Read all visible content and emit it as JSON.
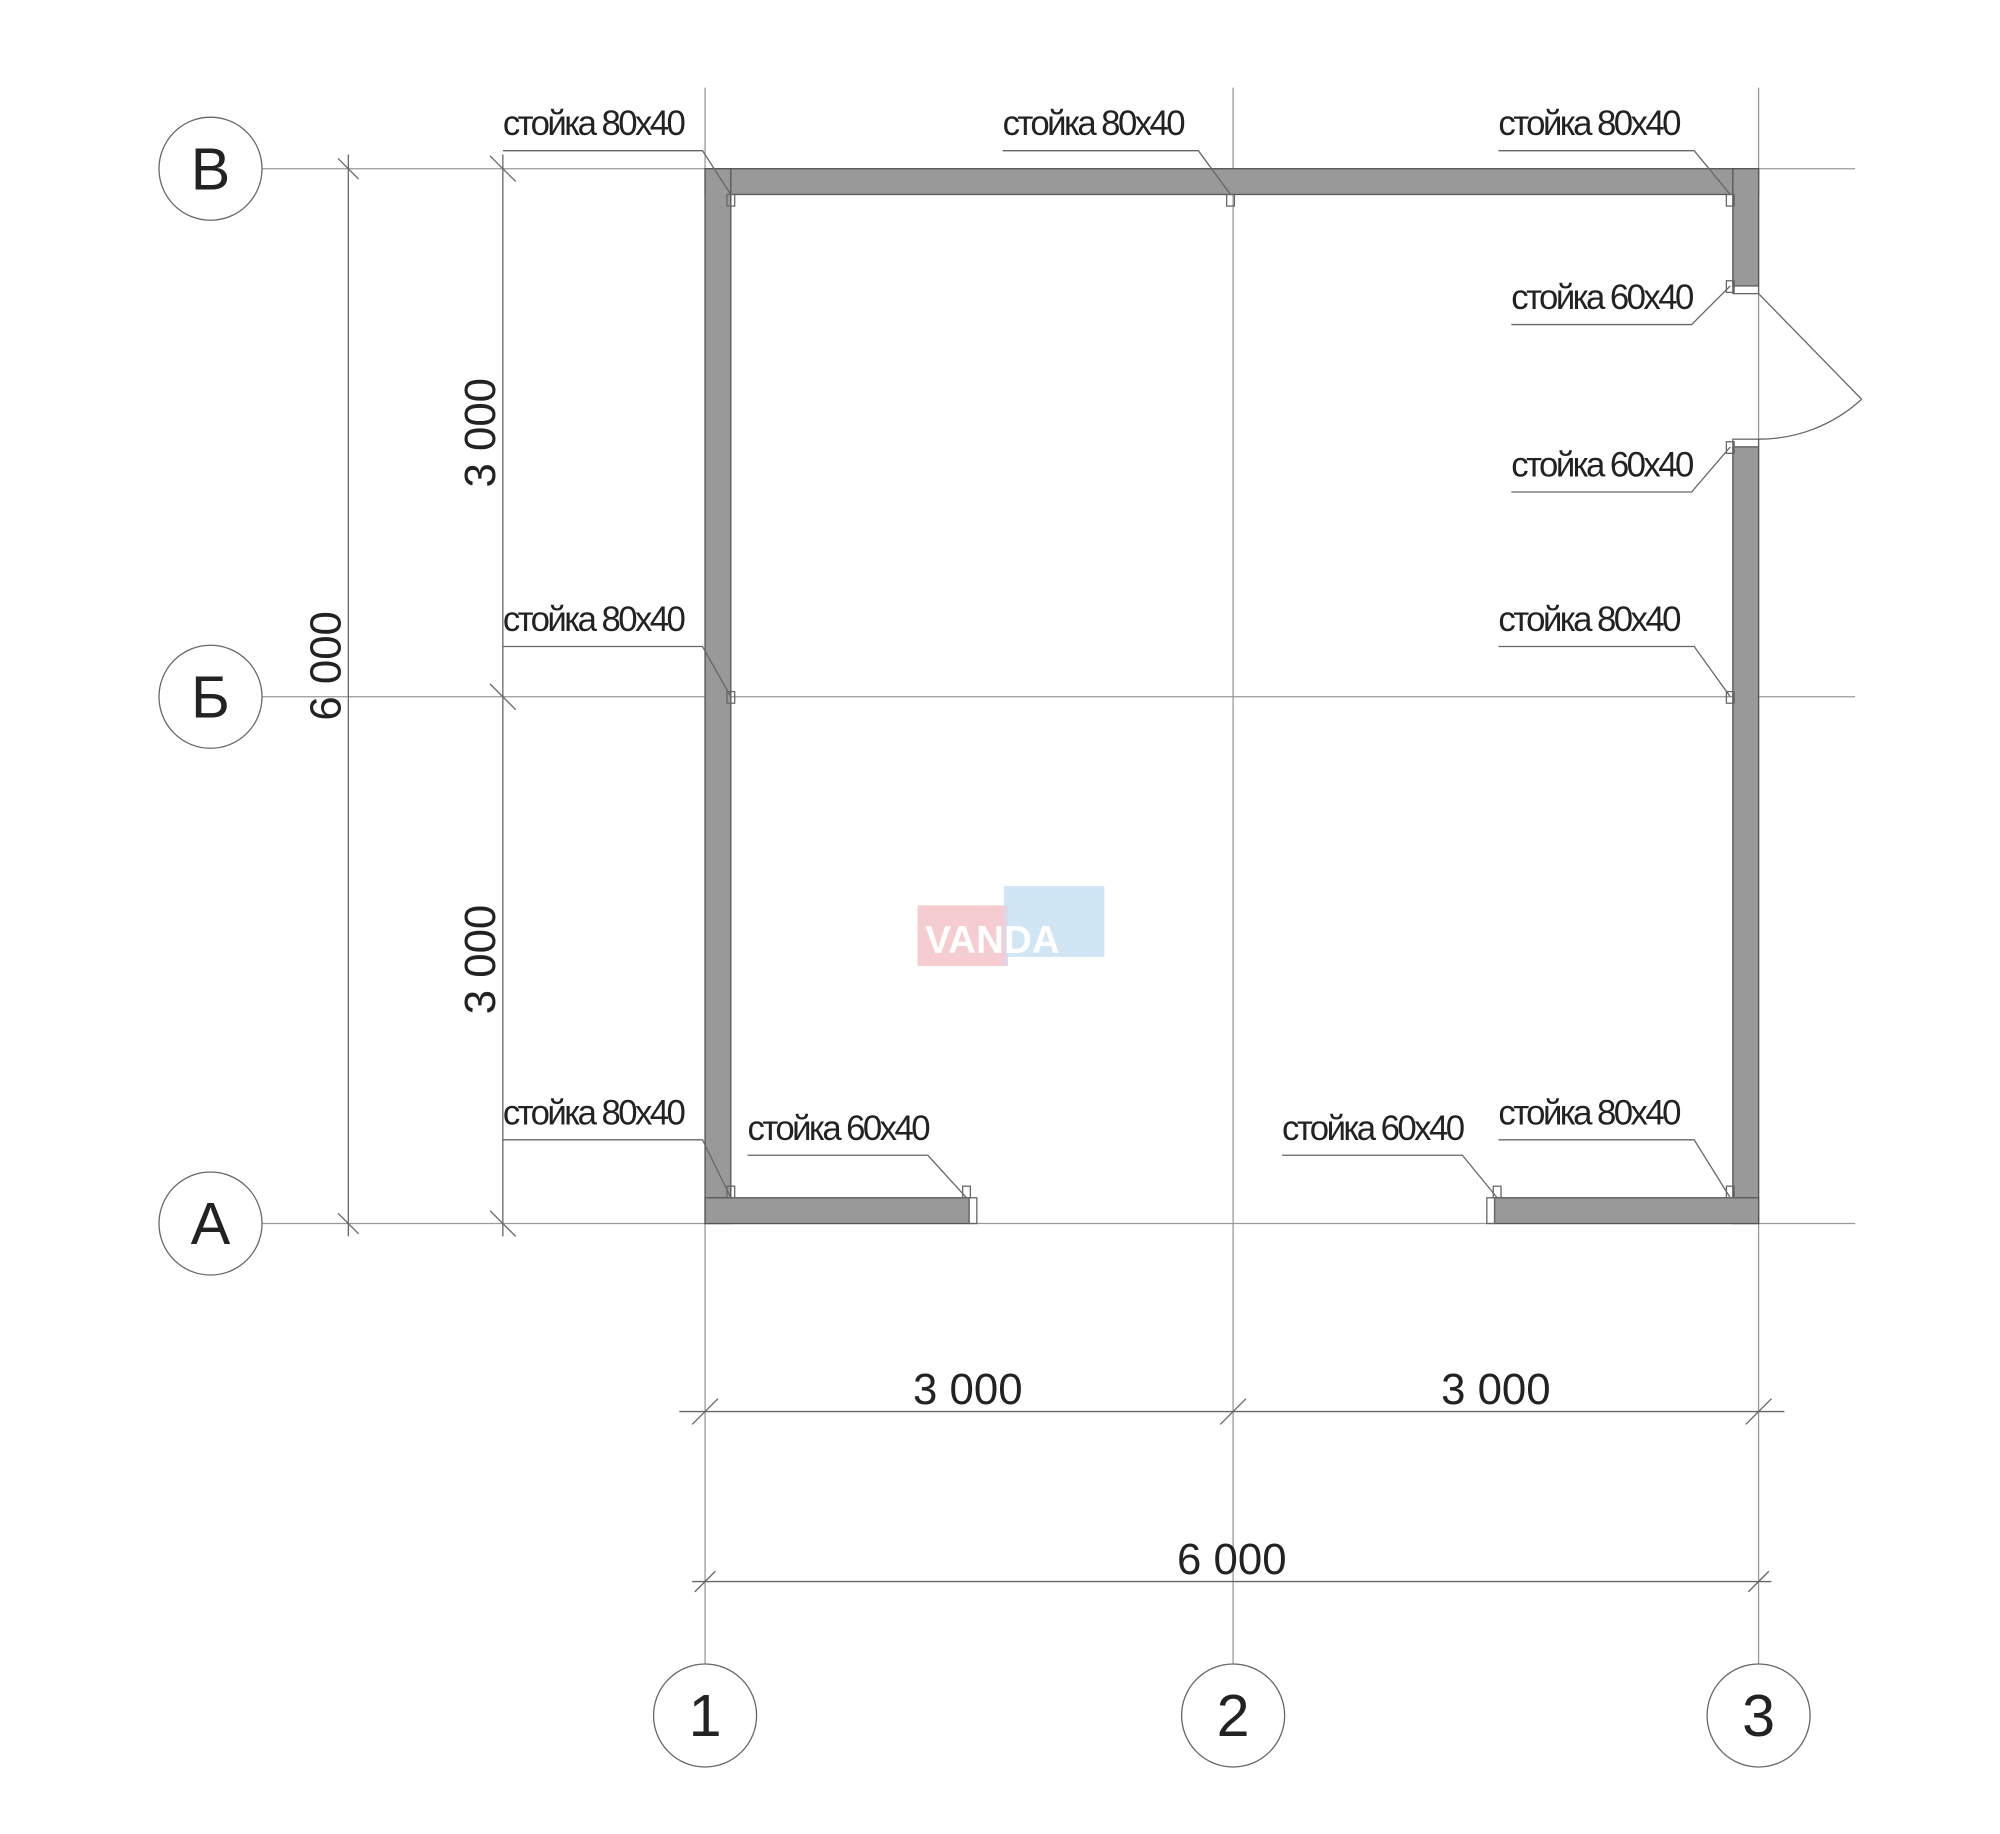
{
  "axes": {
    "rows": [
      "В",
      "Б",
      "А"
    ],
    "columns": [
      "1",
      "2",
      "3"
    ]
  },
  "dimensions": {
    "vertical_total": "6 000",
    "vertical_upper": "3 000",
    "vertical_lower": "3 000",
    "horizontal_left": "3 000",
    "horizontal_right": "3 000",
    "horizontal_total": "6 000"
  },
  "post_labels": [
    "стойка 80x40",
    "стойка 80x40",
    "стойка 80x40",
    "стойка 60x40",
    "стойка 60x40",
    "стойка 80x40",
    "стойка 80x40",
    "стойка 80x40",
    "стойка 60x40",
    "стойка 60x40",
    "стойка 80x40"
  ],
  "watermark": "VANDA",
  "colors": {
    "wall": "#999999",
    "watermark_red": "#f4c4c8",
    "watermark_blue": "#c8e2f4"
  }
}
